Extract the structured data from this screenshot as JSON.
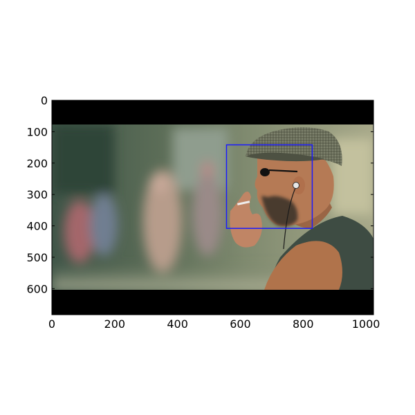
{
  "axes": {
    "x_range": [
      0,
      1024
    ],
    "y_range": [
      683,
      0
    ],
    "x_ticks": [
      {
        "value": 0,
        "label": "0"
      },
      {
        "value": 200,
        "label": "200"
      },
      {
        "value": 400,
        "label": "400"
      },
      {
        "value": 600,
        "label": "600"
      },
      {
        "value": 800,
        "label": "800"
      },
      {
        "value": 1000,
        "label": "1000"
      }
    ],
    "y_ticks": [
      {
        "value": 0,
        "label": "0"
      },
      {
        "value": 100,
        "label": "100"
      },
      {
        "value": 200,
        "label": "200"
      },
      {
        "value": 300,
        "label": "300"
      },
      {
        "value": 400,
        "label": "400"
      },
      {
        "value": 500,
        "label": "500"
      },
      {
        "value": 600,
        "label": "600"
      }
    ],
    "frame_color": "#000000"
  },
  "image": {
    "subject": "man in flat cap and sunglasses smoking a cigarette, with earphones, blurred street background",
    "letterbox_color": "#000000",
    "photo_y_range": [
      78,
      603
    ]
  },
  "detection_box": {
    "x_range": [
      556,
      829
    ],
    "y_range": [
      142,
      408
    ],
    "color": "#1a1aff"
  }
}
